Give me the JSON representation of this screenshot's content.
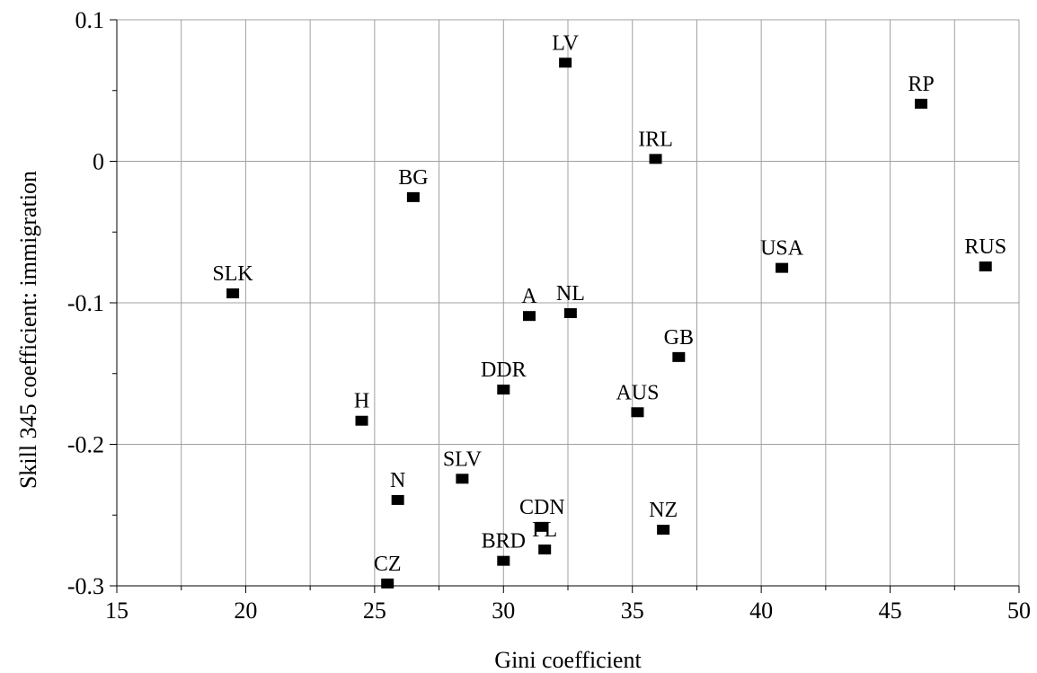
{
  "chart_data": {
    "type": "scatter",
    "xlabel": "Gini coefficient",
    "ylabel": "Skill 345 coefficient: immigration",
    "xlim": [
      15,
      50
    ],
    "ylim": [
      -0.3,
      0.1
    ],
    "x_ticks": [
      15,
      20,
      25,
      30,
      35,
      40,
      45,
      50
    ],
    "x_tick_labels": [
      "15",
      "20",
      "25",
      "30",
      "35",
      "40",
      "45",
      "50"
    ],
    "y_ticks": [
      0.1,
      0,
      -0.1,
      -0.2,
      -0.3
    ],
    "y_tick_labels": [
      "0.1",
      "0",
      "-0.1",
      "-0.2",
      "-0.3"
    ],
    "grid": true,
    "marker": "square",
    "marker_color": "#000000",
    "points": [
      {
        "label": "LV",
        "x": 32.4,
        "y": 0.07
      },
      {
        "label": "RP",
        "x": 46.2,
        "y": 0.041
      },
      {
        "label": "IRL",
        "x": 35.9,
        "y": 0.002
      },
      {
        "label": "BG",
        "x": 26.5,
        "y": -0.025
      },
      {
        "label": "USA",
        "x": 40.8,
        "y": -0.075
      },
      {
        "label": "RUS",
        "x": 48.7,
        "y": -0.074
      },
      {
        "label": "SLK",
        "x": 19.5,
        "y": -0.093
      },
      {
        "label": "A",
        "x": 31.0,
        "y": -0.109
      },
      {
        "label": "NL",
        "x": 32.6,
        "y": -0.107
      },
      {
        "label": "GB",
        "x": 36.8,
        "y": -0.138
      },
      {
        "label": "DDR",
        "x": 30.0,
        "y": -0.161
      },
      {
        "label": "AUS",
        "x": 35.2,
        "y": -0.177
      },
      {
        "label": "H",
        "x": 24.5,
        "y": -0.183
      },
      {
        "label": "SLV",
        "x": 28.4,
        "y": -0.224
      },
      {
        "label": "N",
        "x": 25.9,
        "y": -0.239
      },
      {
        "label": "CDN",
        "x": 31.5,
        "y": -0.258
      },
      {
        "label": "NZ",
        "x": 36.2,
        "y": -0.26
      },
      {
        "label": "PL",
        "x": 31.6,
        "y": -0.274
      },
      {
        "label": "BRD",
        "x": 30.0,
        "y": -0.282
      },
      {
        "label": "CZ",
        "x": 25.5,
        "y": -0.298
      }
    ]
  }
}
